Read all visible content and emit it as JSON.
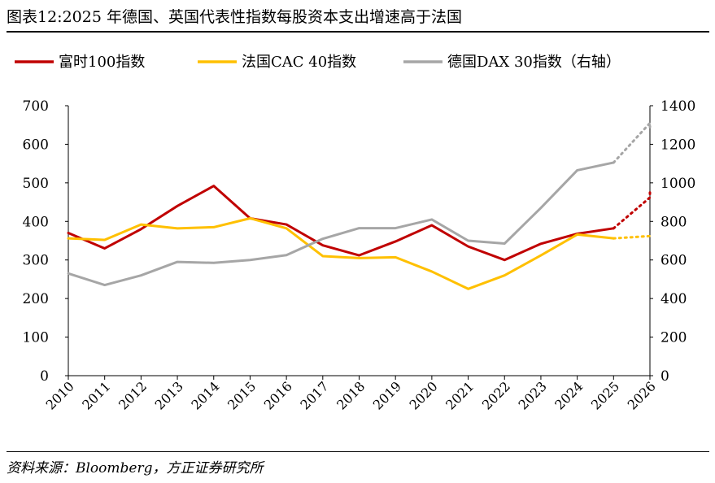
{
  "title": "图表12:2025 年德国、英国代表性指数每股资本支出增速高于法国",
  "source": "资料来源：Bloomberg，方正证券研究所",
  "chart_data": {
    "type": "line",
    "categories": [
      "2010",
      "2011",
      "2012",
      "2013",
      "2014",
      "2015",
      "2016",
      "2017",
      "2018",
      "2019",
      "2020",
      "2021",
      "2022",
      "2023",
      "2024",
      "2025",
      "2026"
    ],
    "series": [
      {
        "name": "富时100指数",
        "color": "#C00000",
        "axis": "left",
        "values": [
          370,
          330,
          380,
          440,
          492,
          408,
          392,
          338,
          312,
          348,
          390,
          335,
          300,
          342,
          368,
          382,
          462
        ],
        "forecast_end": 475
      },
      {
        "name": "法国CAC 40指数",
        "color": "#FFC000",
        "axis": "left",
        "values": [
          356,
          352,
          392,
          382,
          385,
          408,
          382,
          310,
          305,
          307,
          270,
          225,
          260,
          312,
          366,
          356,
          362
        ],
        "forecast_end": 362
      },
      {
        "name": "德国DAX 30指数（右轴）",
        "color": "#A6A6A6",
        "axis": "right",
        "values": [
          530,
          470,
          520,
          590,
          585,
          600,
          625,
          710,
          765,
          765,
          810,
          700,
          685,
          870,
          1065,
          1105,
          1310
        ],
        "forecast_end": 1290
      }
    ],
    "forecast_from_index": 15,
    "y_left": {
      "min": 0,
      "max": 700,
      "ticks": [
        "0",
        "100",
        "200",
        "300",
        "400",
        "500",
        "600",
        "700"
      ]
    },
    "y_right": {
      "min": 0,
      "max": 1400,
      "ticks": [
        "0",
        "200",
        "400",
        "600",
        "800",
        "1000",
        "1200",
        "1400"
      ]
    },
    "legend_position": "top",
    "grid": false
  }
}
